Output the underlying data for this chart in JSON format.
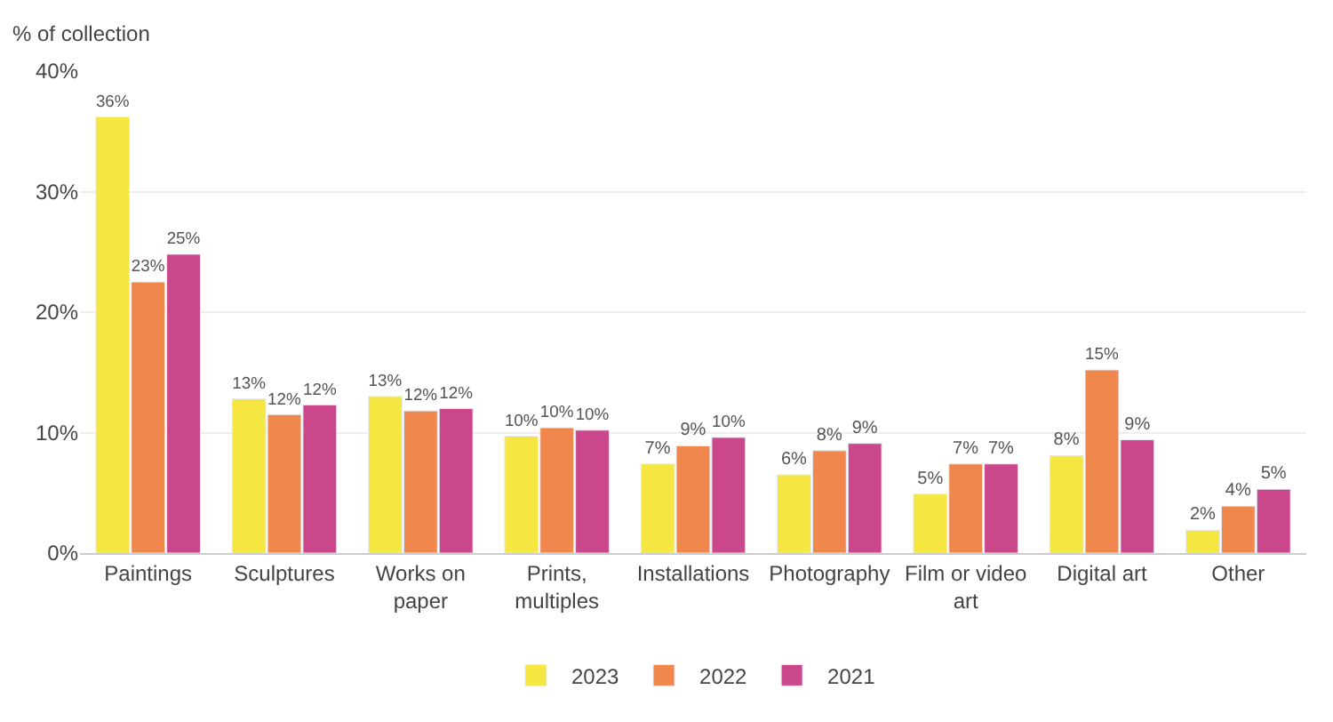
{
  "chart_data": {
    "type": "bar",
    "ylabel": "% of collection",
    "categories": [
      "Paintings",
      "Sculptures",
      "Works on\npaper",
      "Prints,\nmultiples",
      "Installations",
      "Photography",
      "Film or video\nart",
      "Digital art",
      "Other"
    ],
    "series": [
      {
        "name": "2023",
        "color": "#f5e642",
        "values": [
          36.2,
          12.8,
          13.0,
          9.7,
          7.4,
          6.5,
          4.9,
          8.1,
          1.9
        ],
        "value_labels": [
          "36%",
          "13%",
          "13%",
          "10%",
          "7%",
          "6%",
          "5%",
          "8%",
          "2%"
        ]
      },
      {
        "name": "2022",
        "color": "#f0884e",
        "values": [
          22.5,
          11.5,
          11.8,
          10.4,
          8.9,
          8.5,
          7.4,
          15.2,
          3.9
        ],
        "value_labels": [
          "23%",
          "12%",
          "12%",
          "10%",
          "9%",
          "8%",
          "7%",
          "15%",
          "4%"
        ]
      },
      {
        "name": "2021",
        "color": "#c9478a",
        "values": [
          24.8,
          12.3,
          12.0,
          10.2,
          9.6,
          9.1,
          7.4,
          9.4,
          5.3
        ],
        "value_labels": [
          "25%",
          "12%",
          "12%",
          "10%",
          "10%",
          "9%",
          "7%",
          "9%",
          "5%"
        ]
      }
    ],
    "ylim": [
      0,
      40
    ],
    "yticks": [
      {
        "value": 0,
        "label": "0%"
      },
      {
        "value": 10,
        "label": "10%"
      },
      {
        "value": 20,
        "label": "20%"
      },
      {
        "value": 30,
        "label": "30%"
      },
      {
        "value": 40,
        "label": "40%"
      }
    ],
    "grid": "y",
    "legend": "bottom"
  }
}
